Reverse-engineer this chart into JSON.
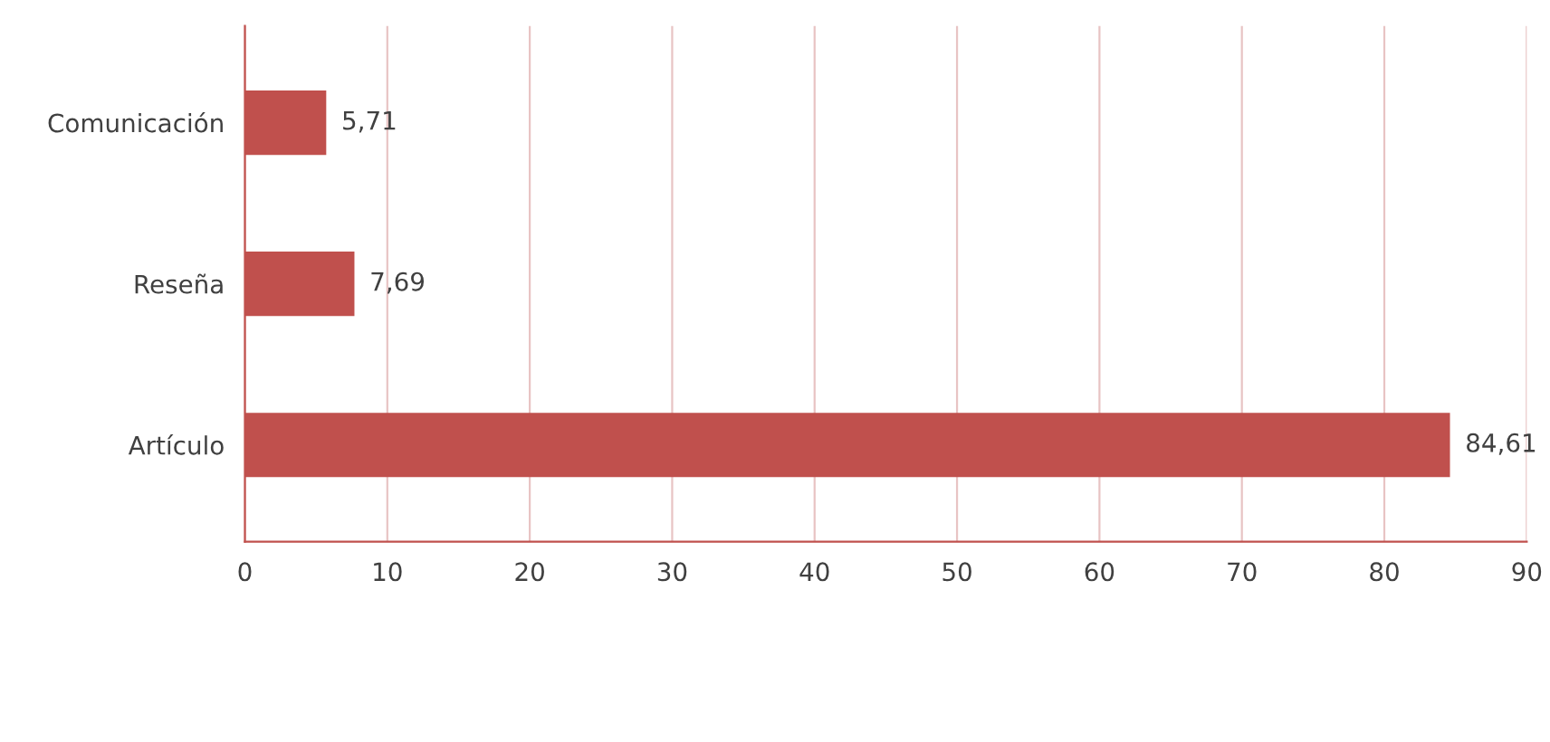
{
  "chart_data": {
    "type": "bar",
    "orientation": "horizontal",
    "categories": [
      "Comunicación",
      "Reseña",
      "Artículo"
    ],
    "values": [
      5.71,
      7.69,
      84.61
    ],
    "value_labels": [
      "5,71",
      "7,69",
      "84,61"
    ],
    "color": "#c0504d",
    "xlim": [
      0,
      90
    ],
    "xticks": [
      0,
      10,
      20,
      30,
      40,
      50,
      60,
      70,
      80,
      90
    ],
    "grid": "x"
  }
}
